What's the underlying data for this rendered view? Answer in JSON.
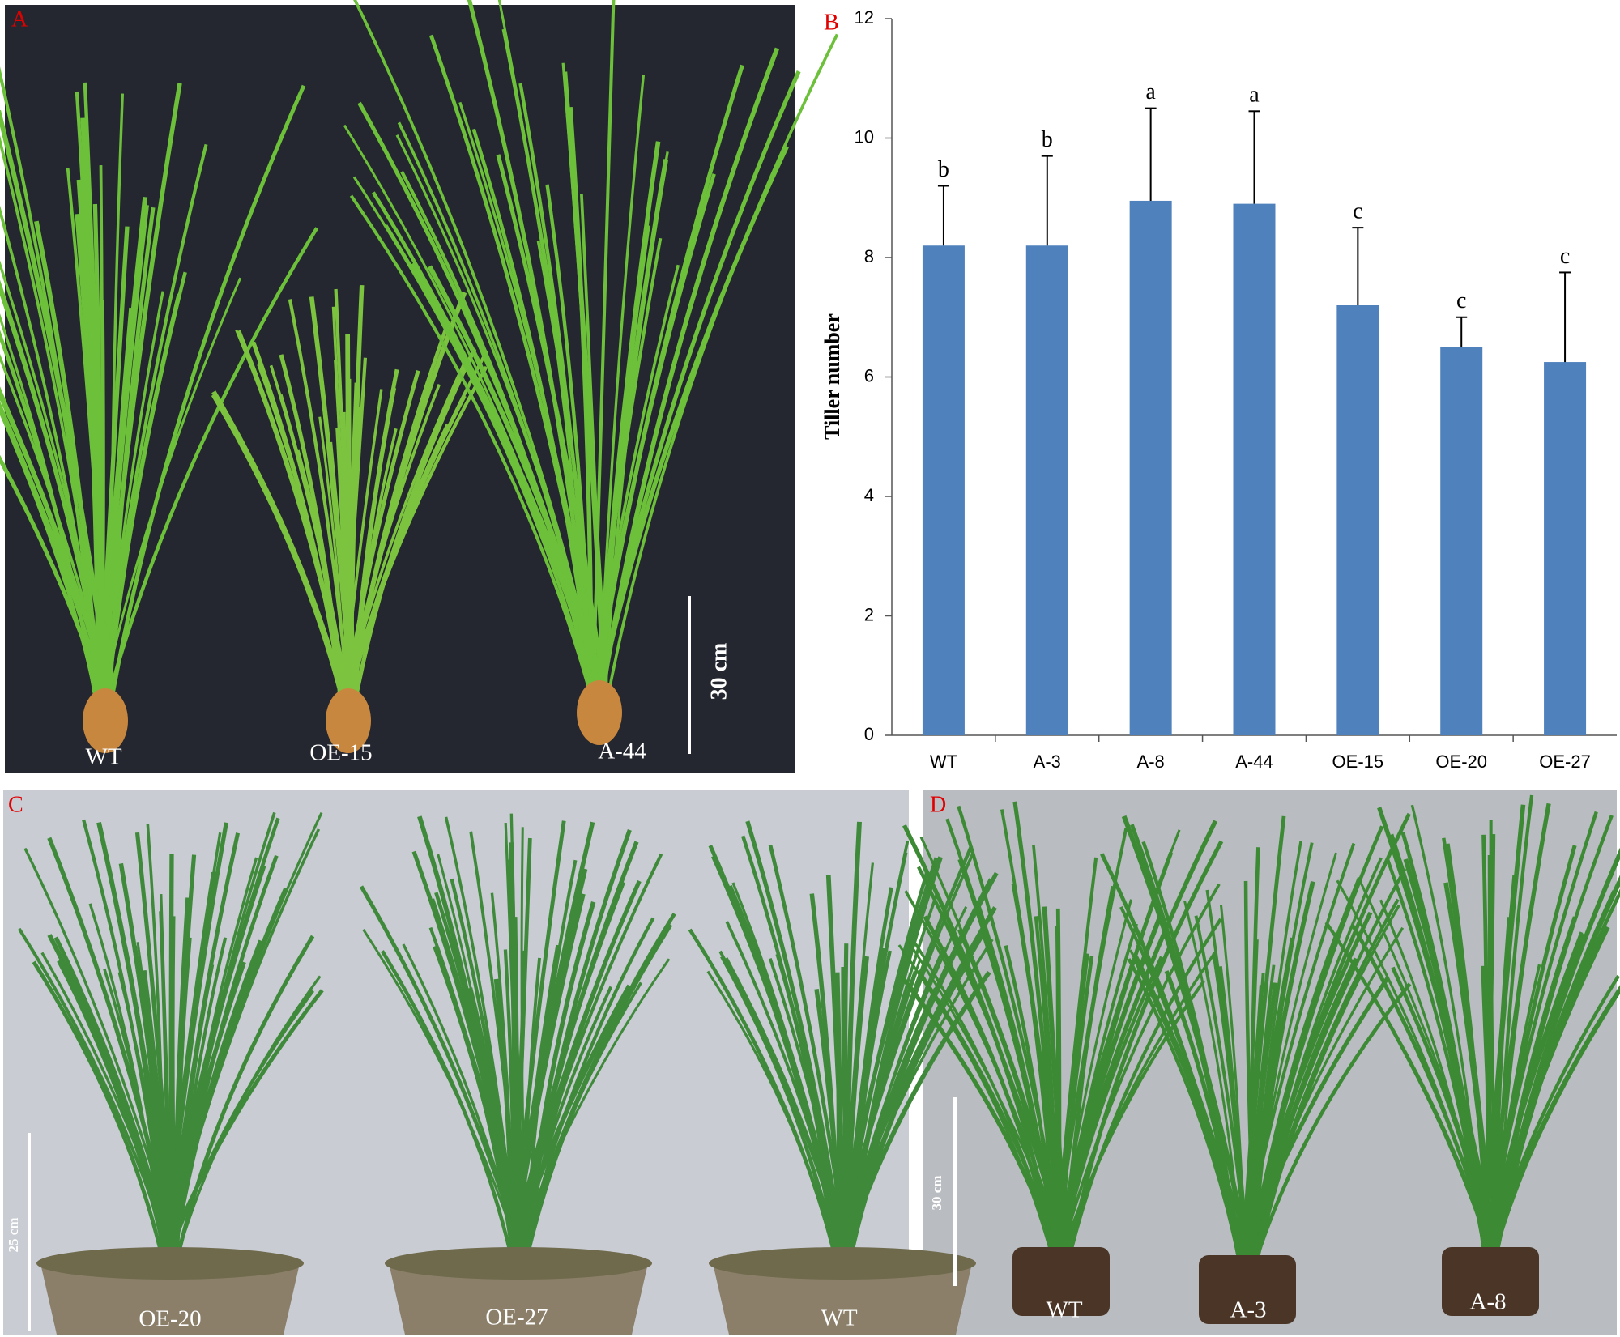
{
  "panels": [
    {
      "letter": "A",
      "labels": [
        "WT",
        "OE-15",
        "A-44"
      ],
      "scale_bar": "30 cm"
    },
    {
      "letter": "C",
      "labels": [
        "OE-20",
        "OE-27",
        "WT"
      ],
      "scale_bar": "25 cm"
    },
    {
      "letter": "D",
      "labels": [
        "WT",
        "A-3",
        "A-8"
      ],
      "scale_bar": "30 cm"
    }
  ],
  "chart_data": {
    "type": "bar",
    "panel_label": "B",
    "y_label": "Tiller number",
    "categories": [
      "WT",
      "A-3",
      "A-8",
      "A-44",
      "OE-15",
      "OE-20",
      "OE-27"
    ],
    "values": [
      8.2,
      8.2,
      8.95,
      8.9,
      7.2,
      6.5,
      6.25
    ],
    "errors": [
      1.0,
      1.5,
      1.55,
      1.55,
      1.3,
      0.5,
      1.5
    ],
    "annotations": [
      "b",
      "b",
      "a",
      "a",
      "c",
      "c",
      "c"
    ],
    "color": "#4f81bd",
    "ylim": [
      0,
      12
    ],
    "yticks": [
      0,
      2,
      4,
      6,
      8,
      10,
      12
    ]
  }
}
